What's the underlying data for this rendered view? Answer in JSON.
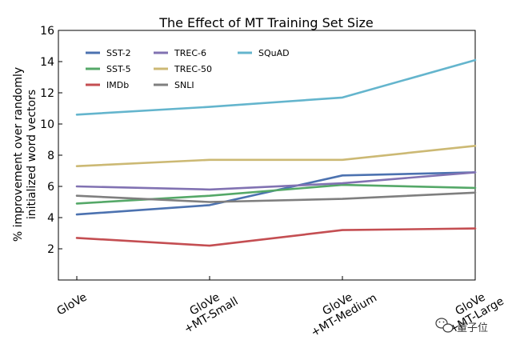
{
  "chart_data": {
    "type": "line",
    "title": "The Effect of MT Training Set Size",
    "ylabel_line1": "% improvement over randomly",
    "ylabel_line2": "initialized word vectors",
    "xlabel": "",
    "categories": [
      [
        "GloVe"
      ],
      [
        "GloVe",
        "+MT-Small"
      ],
      [
        "GloVe",
        "+MT-Medium"
      ],
      [
        "GloVe",
        "+MT-Large"
      ]
    ],
    "ylim": [
      0,
      16
    ],
    "yticks": [
      2,
      4,
      6,
      8,
      10,
      12,
      14,
      16
    ],
    "legend_position": "top-left",
    "grid": false,
    "series": [
      {
        "name": "SST-2",
        "color": "#4c72b0",
        "values": [
          4.2,
          4.8,
          6.7,
          6.9
        ]
      },
      {
        "name": "SST-5",
        "color": "#55a868",
        "values": [
          4.9,
          5.4,
          6.1,
          5.9
        ]
      },
      {
        "name": "IMDb",
        "color": "#c44e52",
        "values": [
          2.7,
          2.2,
          3.2,
          3.3
        ]
      },
      {
        "name": "TREC-6",
        "color": "#8172b2",
        "values": [
          6.0,
          5.8,
          6.2,
          6.9
        ]
      },
      {
        "name": "TREC-50",
        "color": "#ccb974",
        "values": [
          7.3,
          7.7,
          7.7,
          8.6
        ]
      },
      {
        "name": "SNLI",
        "color": "#7f7f7f",
        "values": [
          5.4,
          5.0,
          5.2,
          5.6
        ]
      },
      {
        "name": "SQuAD",
        "color": "#64b5cd",
        "values": [
          10.6,
          11.1,
          11.7,
          14.1
        ]
      }
    ]
  },
  "watermark": {
    "text": "量子位",
    "icon": "wechat-icon"
  }
}
